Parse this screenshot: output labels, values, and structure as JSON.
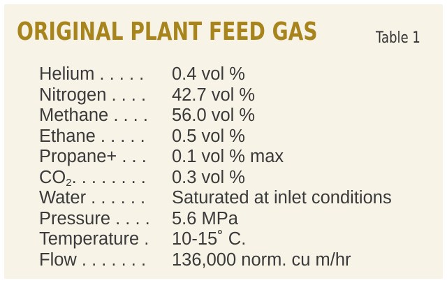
{
  "title": "ORIGINAL PLANT FEED GAS",
  "table_label": "Table 1",
  "rows": [
    {
      "label": "Helium . . . . .",
      "value": "0.4 vol %"
    },
    {
      "label": "Nitrogen . . . .",
      "value": "42.7 vol %"
    },
    {
      "label": "Methane . . . .",
      "value": "56.0 vol %"
    },
    {
      "label": "Ethane . . . . .",
      "value": "0.5 vol %"
    },
    {
      "label": "Propane+ . . .",
      "value": "0.1 vol % max"
    },
    {
      "label_main": "CO",
      "label_sub": "2",
      "label_dots": ". . . . . . . .",
      "value": "0.3 vol %"
    },
    {
      "label": "Water . . . . . .",
      "value": "Saturated at inlet conditions"
    },
    {
      "label": "Pressure . . . .",
      "value": "5.6 MPa"
    },
    {
      "label": "Temperature .",
      "value": "10-15˚ C."
    },
    {
      "label": "Flow . . . . . . .",
      "value": "136,000 norm. cu m/hr"
    }
  ]
}
